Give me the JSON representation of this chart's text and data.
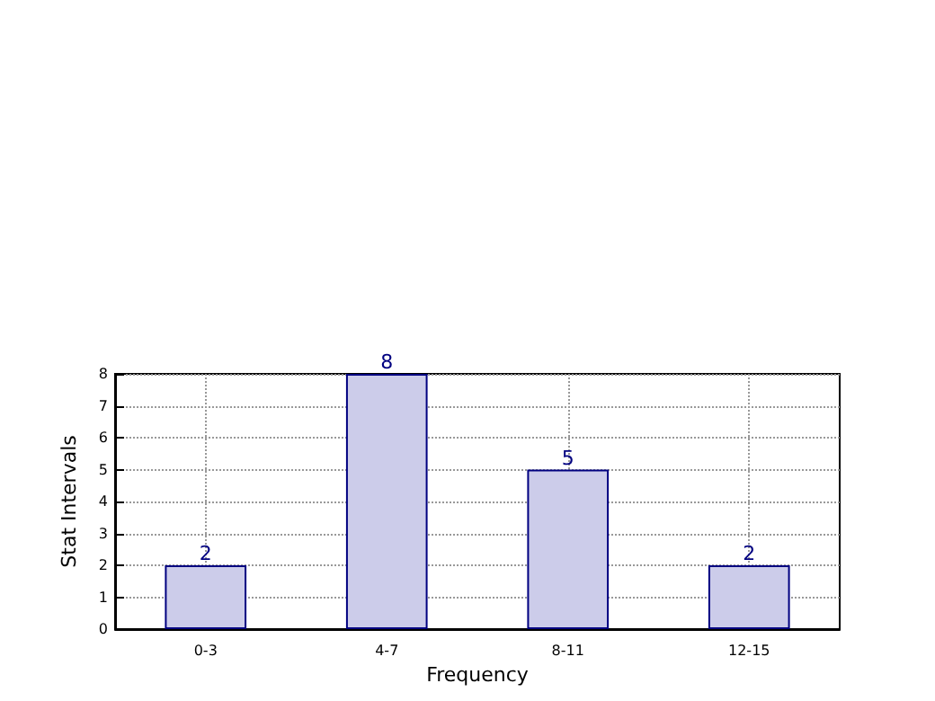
{
  "chart_data": {
    "type": "bar",
    "xlabel": "Frequency",
    "ylabel": "Stat Intervals",
    "categories": [
      "0-3",
      "4-7",
      "8-11",
      "12-15"
    ],
    "values": [
      2,
      8,
      5,
      2
    ],
    "color": "#ccccea",
    "ylim": [
      0,
      8
    ],
    "yticks": [
      0,
      1,
      2,
      3,
      4,
      5,
      6,
      7,
      8
    ],
    "grid": true,
    "data_labels": true
  }
}
